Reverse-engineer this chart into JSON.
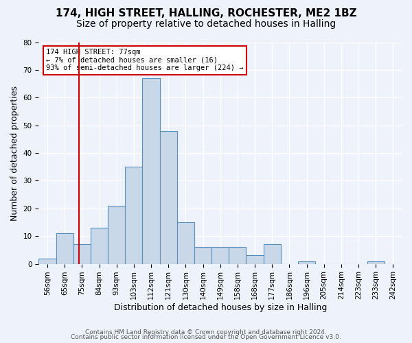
{
  "title1": "174, HIGH STREET, HALLING, ROCHESTER, ME2 1BZ",
  "title2": "Size of property relative to detached houses in Halling",
  "xlabel": "Distribution of detached houses by size in Halling",
  "ylabel": "Number of detached properties",
  "bin_labels": [
    "56sqm",
    "65sqm",
    "75sqm",
    "84sqm",
    "93sqm",
    "103sqm",
    "112sqm",
    "121sqm",
    "130sqm",
    "140sqm",
    "149sqm",
    "158sqm",
    "168sqm",
    "177sqm",
    "186sqm",
    "196sqm",
    "205sqm",
    "214sqm",
    "223sqm",
    "233sqm",
    "242sqm"
  ],
  "bar_heights": [
    2,
    11,
    7,
    13,
    21,
    35,
    67,
    48,
    15,
    6,
    6,
    6,
    3,
    7,
    0,
    1,
    0,
    0,
    0,
    1,
    0
  ],
  "bar_color": "#c8d8e8",
  "bar_edge_color": "#5590c0",
  "annotation_line1": "174 HIGH STREET: 77sqm",
  "annotation_line2": "← 7% of detached houses are smaller (16)",
  "annotation_line3": "93% of semi-detached houses are larger (224) →",
  "annotation_box_color": "#ffffff",
  "annotation_border_color": "#cc0000",
  "red_line_x": 1.82,
  "footer1": "Contains HM Land Registry data © Crown copyright and database right 2024.",
  "footer2": "Contains public sector information licensed under the Open Government Licence v3.0.",
  "ylim": [
    0,
    80
  ],
  "yticks": [
    0,
    10,
    20,
    30,
    40,
    50,
    60,
    70,
    80
  ],
  "background_color": "#eef2fb",
  "grid_color": "#ffffff",
  "title1_fontsize": 11,
  "title2_fontsize": 10,
  "xlabel_fontsize": 9,
  "ylabel_fontsize": 9,
  "tick_fontsize": 7.5,
  "footer_fontsize": 6.5
}
